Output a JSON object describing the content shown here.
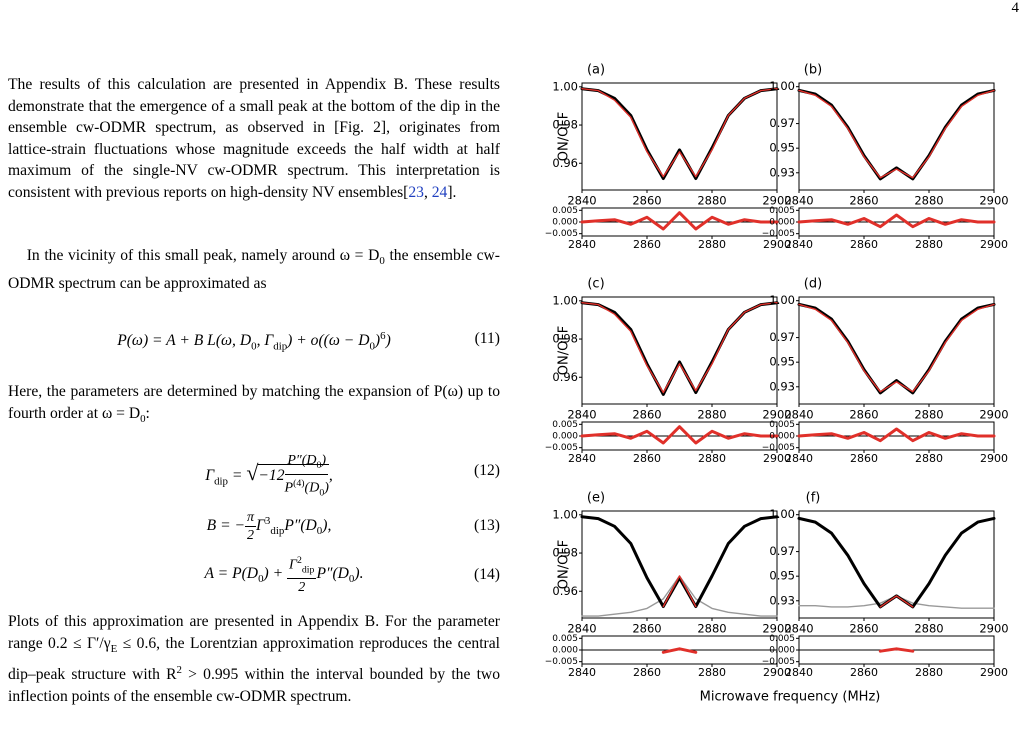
{
  "page_number": "4",
  "paragraphs": [
    {
      "parts": [
        "The results of this calculation are presented in Appendix B. These results demonstrate that the emergence of a small peak at the bottom of the dip in the ensemble cw-ODMR spectrum, as observed in [Fig. 2], originates from lattice-strain fluctuations whose magnitude exceeds the half width at half maximum of the single-NV cw-ODMR spectrum. This interpretation is consistent with previous reports on high-density NV ensembles[",
        "23",
        ", ",
        "24",
        "]."
      ]
    },
    {
      "parts": [
        "In the vicinity of this small peak, namely around ω = D",
        "0",
        " the ensemble cw-ODMR spectrum can be approximated as"
      ]
    },
    {
      "parts": [
        "Here, the parameters are determined by matching the expansion of P(ω) up to fourth order at ω = D",
        "0",
        ":"
      ]
    },
    {
      "parts": [
        "Plots of this approximation are presented in Appendix B. For the parameter range 0.2 ≤ Γ′/γ",
        "E",
        " ≤ 0.6, the Lorentzian approximation reproduces the central dip–peak structure with R",
        "2",
        " > 0.995 within the interval bounded by the two inflection points of the ensemble cw-ODMR spectrum."
      ]
    }
  ],
  "equations": [
    {
      "number": "(11)",
      "parts": [
        "P(ω) = A + B L(ω, D",
        "0",
        ", Γ",
        "dip",
        ") + o((ω − D",
        "0",
        ")",
        "6",
        ")"
      ]
    },
    {
      "number": "(12)",
      "parts": [
        "Γ",
        "dip",
        " = ",
        "−12",
        "P″(D",
        "0",
        ")",
        "P",
        "(4)",
        "(D",
        "0",
        ")",
        ","
      ]
    },
    {
      "number": "(13)",
      "parts": [
        "B = −",
        "π",
        "2",
        "Γ",
        "3",
        "dip",
        "P″(D",
        "0",
        "),"
      ]
    },
    {
      "number": "(14)",
      "parts": [
        "A = P(D",
        "0",
        ") + ",
        "Γ",
        "2",
        "dip",
        "2",
        "P″(D",
        "0",
        ")."
      ]
    }
  ],
  "figure": {
    "x_label": "Microwave frequency (MHz)"
  },
  "chart_data": [
    {
      "type": "line",
      "title": "(a)",
      "ylabel": "ON/OFF",
      "x": [
        2840,
        2845,
        2850,
        2855,
        2860,
        2865,
        2870,
        2875,
        2880,
        2885,
        2890,
        2895,
        2900
      ],
      "xlim": [
        2840,
        2900
      ],
      "xticks": [
        2840,
        2860,
        2880,
        2900
      ],
      "ylim": [
        0.946,
        1.002
      ],
      "yticks": [
        {
          "value": 1,
          "label": "1.00"
        },
        0.98,
        0.96
      ],
      "series": [
        {
          "color": "#000000",
          "values": [
            0.999,
            0.998,
            0.994,
            0.985,
            0.967,
            0.952,
            0.967,
            0.952,
            0.968,
            0.985,
            0.994,
            0.998,
            0.999
          ]
        },
        {
          "color": "#e0302a",
          "values": [
            0.999,
            0.998,
            0.993,
            0.984,
            0.966,
            0.953,
            0.966,
            0.953,
            0.967,
            0.985,
            0.994,
            0.998,
            0.999
          ]
        }
      ]
    },
    {
      "type": "line",
      "title": "(b)",
      "x": [
        2840,
        2845,
        2850,
        2855,
        2860,
        2865,
        2870,
        2875,
        2880,
        2885,
        2890,
        2895,
        2900
      ],
      "xlim": [
        2840,
        2900
      ],
      "xticks": [
        2840,
        2860,
        2880,
        2900
      ],
      "ylim": [
        0.916,
        1.003
      ],
      "yticks": [
        {
          "value": 1,
          "label": "1.00"
        },
        0.97,
        0.95,
        0.93
      ],
      "series": [
        {
          "color": "#000000",
          "values": [
            0.997,
            0.994,
            0.985,
            0.967,
            0.944,
            0.925,
            0.934,
            0.925,
            0.944,
            0.967,
            0.985,
            0.994,
            0.997
          ]
        },
        {
          "color": "#e0302a",
          "values": [
            0.997,
            0.993,
            0.984,
            0.966,
            0.943,
            0.926,
            0.933,
            0.926,
            0.943,
            0.966,
            0.984,
            0.993,
            0.997
          ]
        }
      ]
    },
    {
      "type": "line",
      "title": "(c)",
      "ylabel": "ON/OFF",
      "x": [
        2840,
        2845,
        2850,
        2855,
        2860,
        2865,
        2870,
        2875,
        2880,
        2885,
        2890,
        2895,
        2900
      ],
      "xlim": [
        2840,
        2900
      ],
      "xticks": [
        2840,
        2860,
        2880,
        2900
      ],
      "ylim": [
        0.946,
        1.002
      ],
      "yticks": [
        {
          "value": 1,
          "label": "1.00"
        },
        0.98,
        0.96
      ],
      "series": [
        {
          "color": "#000000",
          "values": [
            0.999,
            0.998,
            0.994,
            0.985,
            0.967,
            0.951,
            0.968,
            0.952,
            0.968,
            0.985,
            0.994,
            0.998,
            0.999
          ]
        },
        {
          "color": "#e0302a",
          "values": [
            0.999,
            0.998,
            0.993,
            0.984,
            0.966,
            0.952,
            0.967,
            0.953,
            0.967,
            0.985,
            0.994,
            0.998,
            0.999
          ]
        }
      ]
    },
    {
      "type": "line",
      "title": "(d)",
      "x": [
        2840,
        2845,
        2850,
        2855,
        2860,
        2865,
        2870,
        2875,
        2880,
        2885,
        2890,
        2895,
        2900
      ],
      "xlim": [
        2840,
        2900
      ],
      "xticks": [
        2840,
        2860,
        2880,
        2900
      ],
      "ylim": [
        0.916,
        1.003
      ],
      "yticks": [
        {
          "value": 1,
          "label": "1.00"
        },
        0.97,
        0.95,
        0.93
      ],
      "series": [
        {
          "color": "#000000",
          "values": [
            0.997,
            0.994,
            0.985,
            0.967,
            0.944,
            0.925,
            0.935,
            0.925,
            0.944,
            0.967,
            0.985,
            0.994,
            0.997
          ]
        },
        {
          "color": "#e0302a",
          "values": [
            0.997,
            0.993,
            0.984,
            0.966,
            0.943,
            0.926,
            0.934,
            0.926,
            0.943,
            0.966,
            0.984,
            0.993,
            0.997
          ]
        }
      ]
    },
    {
      "type": "line",
      "title": "(e)",
      "ylabel": "ON/OFF",
      "x": [
        2840,
        2845,
        2850,
        2855,
        2860,
        2865,
        2870,
        2875,
        2880,
        2885,
        2890,
        2895,
        2900
      ],
      "xlim": [
        2840,
        2900
      ],
      "xticks": [
        2840,
        2860,
        2880,
        2900
      ],
      "ylim": [
        0.946,
        1.002
      ],
      "yticks": [
        {
          "value": 1,
          "label": "1.00"
        },
        0.98,
        0.96
      ],
      "series": [
        {
          "color": "#999999",
          "values": [
            0.947,
            0.947,
            0.948,
            0.949,
            0.951,
            0.956,
            0.968,
            0.956,
            0.951,
            0.949,
            0.948,
            0.947,
            0.947
          ]
        },
        {
          "color": "#000000",
          "values": [
            0.999,
            0.998,
            0.994,
            0.985,
            0.967,
            0.952,
            0.967,
            0.952,
            0.968,
            0.985,
            0.994,
            0.998,
            0.999
          ]
        },
        {
          "color": "#e0302a",
          "values": [
            null,
            null,
            null,
            null,
            null,
            0.952,
            0.968,
            0.952,
            null,
            null,
            null,
            null,
            null
          ]
        }
      ]
    },
    {
      "type": "line",
      "title": "(f)",
      "x": [
        2840,
        2845,
        2850,
        2855,
        2860,
        2865,
        2870,
        2875,
        2880,
        2885,
        2890,
        2895,
        2900
      ],
      "xlim": [
        2840,
        2900
      ],
      "xticks": [
        2840,
        2860,
        2880,
        2900
      ],
      "ylim": [
        0.916,
        1.003
      ],
      "yticks": [
        {
          "value": 1,
          "label": "1.00"
        },
        0.97,
        0.95,
        0.93
      ],
      "series": [
        {
          "color": "#999999",
          "values": [
            0.926,
            0.926,
            0.925,
            0.925,
            0.926,
            0.928,
            0.934,
            0.928,
            0.926,
            0.925,
            0.924,
            0.924,
            0.924
          ]
        },
        {
          "color": "#000000",
          "values": [
            0.997,
            0.994,
            0.985,
            0.967,
            0.944,
            0.925,
            0.934,
            0.925,
            0.944,
            0.967,
            0.985,
            0.994,
            0.997
          ]
        },
        {
          "color": "#e0302a",
          "values": [
            null,
            null,
            null,
            null,
            null,
            0.925,
            0.934,
            0.925,
            null,
            null,
            null,
            null,
            null
          ]
        }
      ]
    },
    {
      "type": "line",
      "x": [
        2840,
        2845,
        2850,
        2855,
        2860,
        2865,
        2870,
        2875,
        2880,
        2885,
        2890,
        2895,
        2900
      ],
      "xlim": [
        2840,
        2900
      ],
      "xticks": [
        2840,
        2860,
        2880,
        2900
      ],
      "ylim": [
        -0.006,
        0.006
      ],
      "yticks": [
        0.005,
        {
          "value": 0,
          "label": "0.000"
        },
        {
          "value": -0.005,
          "label": "−0.005"
        }
      ],
      "series": [
        {
          "color": "#e0302a",
          "values": [
            0,
            0.0005,
            0.001,
            -0.001,
            0.002,
            -0.003,
            0.004,
            -0.003,
            0.002,
            -0.001,
            0.001,
            0,
            0
          ]
        }
      ]
    },
    {
      "type": "line",
      "x": [
        2840,
        2845,
        2850,
        2855,
        2860,
        2865,
        2870,
        2875,
        2880,
        2885,
        2890,
        2895,
        2900
      ],
      "xlim": [
        2840,
        2900
      ],
      "xticks": [
        2840,
        2860,
        2880,
        2900
      ],
      "ylim": [
        -0.006,
        0.006
      ],
      "yticks": [
        0.005,
        {
          "value": 0,
          "label": "0.000"
        },
        {
          "value": -0.005,
          "label": "−0.005"
        }
      ],
      "series": [
        {
          "color": "#e0302a",
          "values": [
            0,
            0.0005,
            0.001,
            -0.001,
            0.0015,
            -0.002,
            0.003,
            -0.002,
            0.0015,
            -0.001,
            0.001,
            0,
            0
          ]
        }
      ]
    },
    {
      "type": "line",
      "x": [
        2840,
        2845,
        2850,
        2855,
        2860,
        2865,
        2870,
        2875,
        2880,
        2885,
        2890,
        2895,
        2900
      ],
      "xlim": [
        2840,
        2900
      ],
      "xticks": [
        2840,
        2860,
        2880,
        2900
      ],
      "ylim": [
        -0.006,
        0.006
      ],
      "yticks": [
        0.005,
        {
          "value": 0,
          "label": "0.000"
        },
        {
          "value": -0.005,
          "label": "−0.005"
        }
      ],
      "series": [
        {
          "color": "#e0302a",
          "values": [
            0,
            0.0005,
            0.001,
            -0.001,
            0.002,
            -0.003,
            0.004,
            -0.003,
            0.002,
            -0.001,
            0.001,
            0,
            0
          ]
        }
      ]
    },
    {
      "type": "line",
      "x": [
        2840,
        2845,
        2850,
        2855,
        2860,
        2865,
        2870,
        2875,
        2880,
        2885,
        2890,
        2895,
        2900
      ],
      "xlim": [
        2840,
        2900
      ],
      "xticks": [
        2840,
        2860,
        2880,
        2900
      ],
      "ylim": [
        -0.006,
        0.006
      ],
      "yticks": [
        0.005,
        {
          "value": 0,
          "label": "0.000"
        },
        {
          "value": -0.005,
          "label": "−0.005"
        }
      ],
      "series": [
        {
          "color": "#e0302a",
          "values": [
            0,
            0.0005,
            0.001,
            -0.001,
            0.0015,
            -0.002,
            0.003,
            -0.002,
            0.0015,
            -0.001,
            0.001,
            0,
            0
          ]
        }
      ]
    },
    {
      "type": "line",
      "x": [
        2840,
        2845,
        2850,
        2855,
        2860,
        2865,
        2870,
        2875,
        2880,
        2885,
        2890,
        2895,
        2900
      ],
      "xlim": [
        2840,
        2900
      ],
      "xticks": [
        2840,
        2860,
        2880,
        2900
      ],
      "ylim": [
        -0.006,
        0.006
      ],
      "yticks": [
        0.005,
        {
          "value": 0,
          "label": "0.000"
        },
        {
          "value": -0.005,
          "label": "−0.005"
        }
      ],
      "series": [
        {
          "color": "#e0302a",
          "values": [
            null,
            null,
            null,
            null,
            null,
            -0.001,
            0.0005,
            -0.001,
            null,
            null,
            null,
            null,
            null
          ]
        }
      ]
    },
    {
      "type": "line",
      "x": [
        2840,
        2845,
        2850,
        2855,
        2860,
        2865,
        2870,
        2875,
        2880,
        2885,
        2890,
        2895,
        2900
      ],
      "xlim": [
        2840,
        2900
      ],
      "xticks": [
        2840,
        2860,
        2880,
        2900
      ],
      "ylim": [
        -0.006,
        0.006
      ],
      "yticks": [
        0.005,
        {
          "value": 0,
          "label": "0.000"
        },
        {
          "value": -0.005,
          "label": "−0.005"
        }
      ],
      "series": [
        {
          "color": "#e0302a",
          "values": [
            null,
            null,
            null,
            null,
            null,
            -0.0005,
            0.0005,
            -0.0005,
            null,
            null,
            null,
            null,
            null
          ]
        }
      ]
    }
  ]
}
